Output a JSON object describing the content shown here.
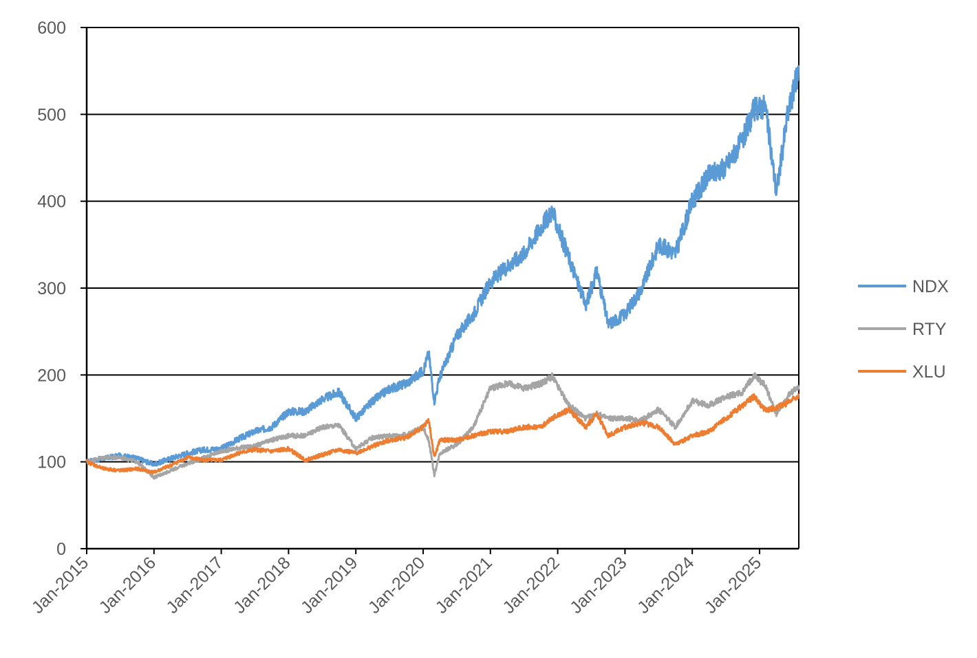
{
  "chart_data": {
    "type": "line",
    "title": "",
    "xlabel": "",
    "ylabel": "",
    "ylim": [
      0,
      600
    ],
    "yticks": [
      0,
      100,
      200,
      300,
      400,
      500,
      600
    ],
    "xlim": [
      "2015-01",
      "2025-08"
    ],
    "x_tick_labels": [
      "Jan-2015",
      "Jan-2016",
      "Jan-2017",
      "Jan-2018",
      "Jan-2019",
      "Jan-2020",
      "Jan-2021",
      "Jan-2022",
      "Jan-2023",
      "Jan-2024",
      "Jan-2025"
    ],
    "grid": "horizontal major gridlines",
    "legend_position": "right",
    "x": [
      "2015-01",
      "2015-04",
      "2015-07",
      "2015-10",
      "2016-01",
      "2016-04",
      "2016-07",
      "2016-10",
      "2017-01",
      "2017-04",
      "2017-07",
      "2017-10",
      "2018-01",
      "2018-04",
      "2018-07",
      "2018-10",
      "2019-01",
      "2019-04",
      "2019-07",
      "2019-10",
      "2020-01",
      "2020-02",
      "2020-03",
      "2020-04",
      "2020-07",
      "2020-10",
      "2021-01",
      "2021-04",
      "2021-07",
      "2021-10",
      "2021-12",
      "2022-03",
      "2022-06",
      "2022-08",
      "2022-10",
      "2023-01",
      "2023-04",
      "2023-07",
      "2023-10",
      "2024-01",
      "2024-04",
      "2024-07",
      "2024-10",
      "2024-12",
      "2025-02",
      "2025-04",
      "2025-06",
      "2025-08"
    ],
    "series": [
      {
        "name": "NDX",
        "color": "#5b9bd5",
        "values": [
          100,
          104,
          107,
          104,
          97,
          104,
          110,
          114,
          115,
          126,
          135,
          140,
          158,
          158,
          172,
          180,
          150,
          170,
          184,
          190,
          205,
          225,
          170,
          198,
          245,
          270,
          307,
          325,
          340,
          370,
          388,
          335,
          280,
          320,
          258,
          270,
          300,
          350,
          340,
          400,
          430,
          440,
          470,
          505,
          510,
          410,
          500,
          552
        ]
      },
      {
        "name": "RTY",
        "color": "#a5a5a5",
        "values": [
          100,
          105,
          105,
          100,
          82,
          90,
          98,
          105,
          112,
          116,
          118,
          125,
          130,
          130,
          140,
          142,
          115,
          128,
          130,
          131,
          140,
          125,
          85,
          110,
          120,
          140,
          185,
          190,
          185,
          190,
          198,
          165,
          150,
          155,
          150,
          150,
          148,
          160,
          140,
          170,
          165,
          175,
          180,
          200,
          188,
          155,
          175,
          187
        ]
      },
      {
        "name": "XLU",
        "color": "#ed7d31",
        "values": [
          100,
          92,
          90,
          92,
          88,
          96,
          105,
          102,
          102,
          110,
          114,
          112,
          115,
          102,
          108,
          114,
          110,
          118,
          125,
          128,
          140,
          148,
          105,
          125,
          125,
          130,
          135,
          135,
          140,
          140,
          150,
          160,
          140,
          155,
          130,
          140,
          145,
          140,
          120,
          130,
          135,
          150,
          165,
          175,
          160,
          162,
          168,
          176
        ]
      }
    ]
  }
}
